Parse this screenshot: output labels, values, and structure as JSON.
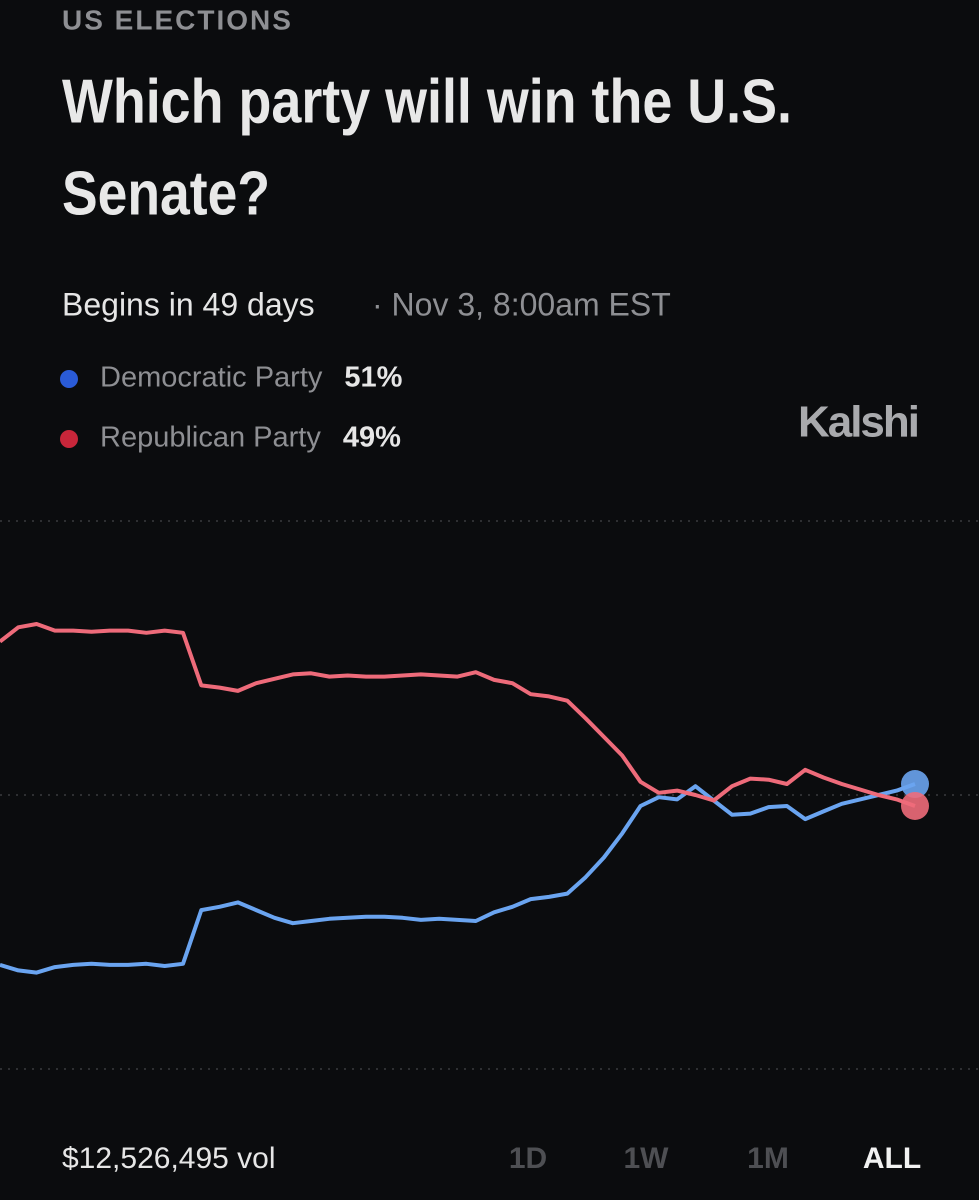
{
  "header": {
    "category": "US ELECTIONS",
    "title_lines": [
      "Which party will win the U.S.",
      "Senate?"
    ],
    "begins": "Begins in 49 days",
    "date": "· Nov 3, 8:00am EST",
    "brand": "Kalshi"
  },
  "chart_data": {
    "type": "line",
    "grid": true,
    "ylim": [
      20,
      80
    ],
    "yticks": [
      25,
      50,
      75
    ],
    "series": [
      {
        "name": "Democratic Party",
        "color": "#6aa4f0",
        "dot_color": "#2a5bd7",
        "values": [
          34.5,
          34,
          33.8,
          34.3,
          34.5,
          34.6,
          34.5,
          34.5,
          34.6,
          34.4,
          34.6,
          39.5,
          39.8,
          40.2,
          39.5,
          38.8,
          38.3,
          38.5,
          38.7,
          38.8,
          38.9,
          38.9,
          38.8,
          38.6,
          38.7,
          38.6,
          38.5,
          39.3,
          39.8,
          40.5,
          40.7,
          41,
          42.5,
          44.3,
          46.5,
          49,
          49.8,
          49.6,
          50.8,
          49.5,
          48.2,
          48.3,
          48.9,
          49,
          47.8,
          48.5,
          49.2,
          49.6,
          50,
          50.4,
          51
        ],
        "value_labels": [
          null,
          null,
          null,
          null,
          null,
          null,
          null,
          null,
          null,
          null,
          null,
          null,
          null,
          null,
          null,
          null,
          null,
          null,
          null,
          null,
          null,
          null,
          null,
          null,
          null,
          null,
          null,
          null,
          null,
          null,
          null,
          null,
          null,
          null,
          null,
          null,
          null,
          null,
          null,
          null,
          null,
          null,
          null,
          null,
          null,
          null,
          null,
          null,
          null,
          null,
          "51%"
        ]
      },
      {
        "name": "Republican Party",
        "color": "#ee6b7a",
        "dot_color": "#c8263a",
        "values": [
          64,
          65.3,
          65.6,
          65,
          65,
          64.9,
          65,
          65,
          64.8,
          65,
          64.8,
          60,
          59.8,
          59.5,
          60.2,
          60.6,
          61,
          61.1,
          60.8,
          60.9,
          60.8,
          60.8,
          60.9,
          61,
          60.9,
          60.8,
          61.2,
          60.5,
          60.2,
          59.2,
          59,
          58.6,
          57,
          55.3,
          53.6,
          51.2,
          50.2,
          50.4,
          50,
          49.5,
          50.8,
          51.5,
          51.4,
          51,
          52.3,
          51.6,
          51,
          50.5,
          50,
          49.6,
          49
        ],
        "value_labels": [
          null,
          null,
          null,
          null,
          null,
          null,
          null,
          null,
          null,
          null,
          null,
          null,
          null,
          null,
          null,
          null,
          null,
          null,
          null,
          null,
          null,
          null,
          null,
          null,
          null,
          null,
          null,
          null,
          null,
          null,
          null,
          null,
          null,
          null,
          null,
          null,
          null,
          null,
          null,
          null,
          null,
          null,
          null,
          null,
          null,
          null,
          null,
          null,
          null,
          null,
          "49%"
        ]
      }
    ]
  },
  "footer": {
    "volume": "$12,526,495 vol",
    "ranges": [
      "1D",
      "1W",
      "1M",
      "ALL"
    ],
    "active_range": 3
  }
}
